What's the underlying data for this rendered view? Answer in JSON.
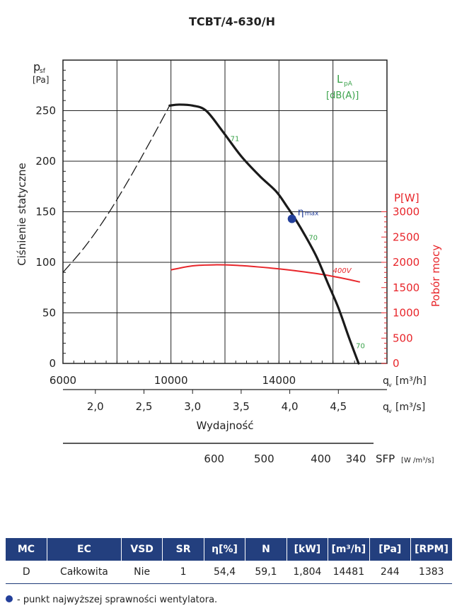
{
  "chart_data": {
    "type": "line",
    "title": "TCBT/4-630/H",
    "ylabel": "Ciśnienie statyczne",
    "ylabel_unit_symbol": "p",
    "ylabel_unit_sub": "sf",
    "ylabel_unit": "[Pa]",
    "ylim": [
      0,
      300
    ],
    "y_ticks": [
      0,
      50,
      100,
      150,
      200,
      250
    ],
    "xlim_m3h": [
      6000,
      18000
    ],
    "x_gridlines_m3h": [
      6000,
      8000,
      10000,
      12000,
      14000,
      16000,
      18000
    ],
    "x_ticks_m3h": [
      6000,
      10000,
      14000
    ],
    "x_unit_m3h": "q",
    "x_unit_m3h_tail": "[m³/h]",
    "x_ticks_m3s": [
      "2,0",
      "2,5",
      "3,0",
      "3,5",
      "4,0",
      "4,5"
    ],
    "x_ticks_m3s_values": [
      2.0,
      2.5,
      3.0,
      3.5,
      4.0,
      4.5
    ],
    "x_unit_m3s": "q",
    "x_unit_m3s_tail": "[m³/s]",
    "x_unit_sub": "v",
    "xlabel": "Wydajność",
    "sfp_ticks": [
      "600",
      "500",
      "400",
      "340"
    ],
    "sfp_ticks_m3h": [
      11600,
      13450,
      15550,
      16850
    ],
    "sfp_label": "SFP",
    "sfp_unit": "[W /m³/s]",
    "noise_label": "L",
    "noise_label_sub": "pA",
    "noise_unit": "[dB(A)]",
    "power_label": "P[W]",
    "power_axis_title": "Pobór mocy",
    "power_ticks": [
      "3000",
      "2500",
      "2000",
      "1500",
      "1000",
      "500",
      "0"
    ],
    "power_tick_values": [
      3000,
      2500,
      2000,
      1500,
      1000,
      500,
      0
    ],
    "pressure_curve": {
      "name": "pressure",
      "x": [
        9950,
        10300,
        10800,
        11300,
        11900,
        12600,
        13300,
        13900,
        14300,
        14600,
        15000,
        15400,
        15800,
        16200,
        16600,
        16950
      ],
      "y": [
        255,
        256,
        255,
        250,
        230,
        205,
        185,
        170,
        155,
        143,
        125,
        105,
        80,
        55,
        25,
        0
      ]
    },
    "stall_curve": {
      "name": "unstable region",
      "x": [
        6000,
        6800,
        7600,
        8400,
        9200,
        9950
      ],
      "y": [
        90,
        115,
        145,
        180,
        218,
        255
      ]
    },
    "power_curve": {
      "name": "400V",
      "x": [
        10000,
        10800,
        11600,
        12400,
        13200,
        14000,
        14800,
        15600,
        16400,
        17000
      ],
      "y": [
        1850,
        1930,
        1950,
        1940,
        1910,
        1870,
        1820,
        1760,
        1680,
        1610
      ]
    },
    "max_efficiency_point": {
      "x": 14481,
      "y": 143,
      "label": "η",
      "label_sub": "max"
    },
    "noise_annotations": [
      {
        "x": 12200,
        "y": 220,
        "text": "71"
      },
      {
        "x": 15100,
        "y": 122,
        "text": "70"
      },
      {
        "x": 16850,
        "y": 15,
        "text": "70"
      }
    ],
    "power_curve_label": "400V"
  },
  "table": {
    "headers": [
      "MC",
      "EC",
      "VSD",
      "SR",
      "η[%]",
      "N",
      "[kW]",
      "[m³/h]",
      "[Pa]",
      "[RPM]"
    ],
    "row": [
      "D",
      "Całkowita",
      "Nie",
      "1",
      "54,4",
      "59,1",
      "1,804",
      "14481",
      "244",
      "1383"
    ]
  },
  "legend": {
    "text": "- punkt najwyższej sprawności wentylatora.",
    "dot_color": "#233f9a"
  },
  "colors": {
    "curve": "#1a1a1a",
    "power": "#e8262b",
    "noise": "#3aa24a",
    "point": "#233f9a",
    "header_bg": "#233f7e"
  }
}
